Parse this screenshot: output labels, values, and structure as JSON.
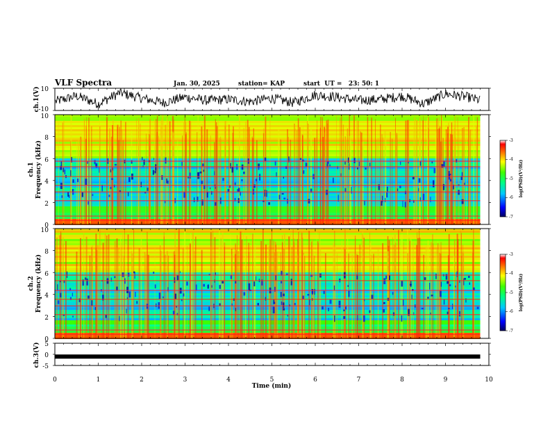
{
  "header": {
    "title": "VLF Spectra",
    "date": "Jan. 30, 2025",
    "station": "station= KAP",
    "start": "start  UT =   23: 50: 1"
  },
  "colors": {
    "low": "#000080",
    "mid": "#00ff00",
    "high": "#ff0000",
    "waveform": "#000000"
  },
  "chart_data": [
    {
      "type": "line",
      "name": "ch1-waveform",
      "ylabel": "ch.1(V)",
      "ylim": [
        -10,
        10
      ],
      "y_ticks": [
        "10",
        "-10"
      ],
      "x": [
        0,
        0.5,
        1,
        1.5,
        2,
        2.5,
        3,
        3.5,
        4,
        4.5,
        5,
        5.5,
        6,
        6.5,
        7,
        7.5,
        8,
        8.5,
        9,
        9.5,
        9.8
      ],
      "values": [
        -2,
        3,
        -4,
        6,
        1,
        -3,
        2,
        -1,
        0,
        -2,
        1,
        -3,
        4,
        2,
        -1,
        0,
        3,
        -4,
        5,
        2,
        -1
      ]
    },
    {
      "type": "heatmap",
      "name": "ch1-spectrogram",
      "ylabel_top": "ch.1",
      "ylabel": "Frequency (kHz)",
      "ylim": [
        0,
        10
      ],
      "y_ticks": [
        "0",
        "2",
        "4",
        "6",
        "8",
        "10"
      ],
      "colorbar": {
        "label": "log(PSD)(V²/Hz)",
        "range": [
          -7,
          -3
        ],
        "ticks": [
          "-3",
          "-4",
          "-5",
          "-6",
          "-7"
        ]
      }
    },
    {
      "type": "heatmap",
      "name": "ch2-spectrogram",
      "ylabel_top": "ch.2",
      "ylabel": "Frequency (kHz)",
      "ylim": [
        0,
        10
      ],
      "y_ticks": [
        "0",
        "2",
        "4",
        "6",
        "8",
        "10"
      ],
      "colorbar": {
        "label": "log(PSD)(V²/Hz)",
        "range": [
          -7,
          -3
        ],
        "ticks": [
          "-3",
          "-4",
          "-5",
          "-6",
          "-7"
        ]
      }
    },
    {
      "type": "line",
      "name": "ch3-waveform",
      "ylabel": "ch.3(V)",
      "ylim": [
        -5,
        5
      ],
      "y_ticks": [
        "5",
        "0",
        "-5"
      ],
      "level": -1
    }
  ],
  "xaxis": {
    "label": "Time (min)",
    "xlim": [
      0,
      10
    ],
    "ticks": [
      "0",
      "1",
      "2",
      "3",
      "4",
      "5",
      "6",
      "7",
      "8",
      "9",
      "10"
    ],
    "data_end": 9.8
  }
}
